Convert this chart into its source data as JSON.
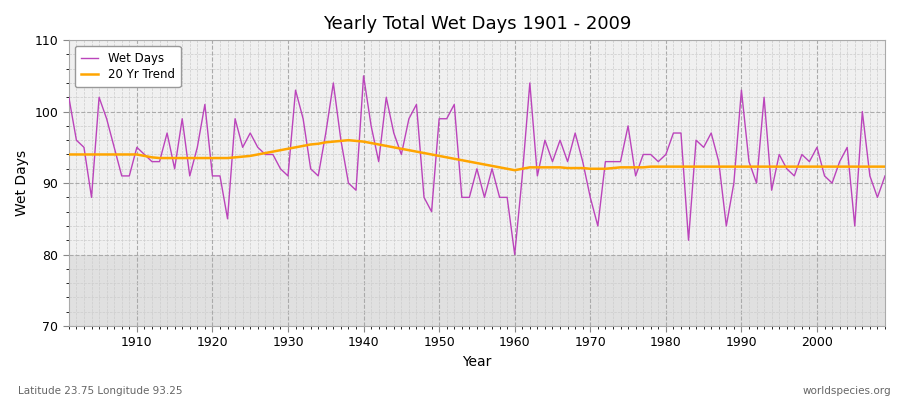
{
  "title": "Yearly Total Wet Days 1901 - 2009",
  "xlabel": "Year",
  "ylabel": "Wet Days",
  "xlim": [
    1901,
    2009
  ],
  "ylim": [
    70,
    110
  ],
  "yticks": [
    70,
    80,
    90,
    100,
    110
  ],
  "xticks": [
    1910,
    1920,
    1930,
    1940,
    1950,
    1960,
    1970,
    1980,
    1990,
    2000
  ],
  "bg_color": "#ffffff",
  "plot_bg_upper": "#f0f0f0",
  "plot_bg_lower": "#e0e0e0",
  "wet_days_color": "#bb44bb",
  "trend_color": "#ffa500",
  "legend_labels": [
    "Wet Days",
    "20 Yr Trend"
  ],
  "footer_left": "Latitude 23.75 Longitude 93.25",
  "footer_right": "worldspecies.org",
  "wet_days": {
    "years": [
      1901,
      1902,
      1903,
      1904,
      1905,
      1906,
      1907,
      1908,
      1909,
      1910,
      1911,
      1912,
      1913,
      1914,
      1915,
      1916,
      1917,
      1918,
      1919,
      1920,
      1921,
      1922,
      1923,
      1924,
      1925,
      1926,
      1927,
      1928,
      1929,
      1930,
      1931,
      1932,
      1933,
      1934,
      1935,
      1936,
      1937,
      1938,
      1939,
      1940,
      1941,
      1942,
      1943,
      1944,
      1945,
      1946,
      1947,
      1948,
      1949,
      1950,
      1951,
      1952,
      1953,
      1954,
      1955,
      1956,
      1957,
      1958,
      1959,
      1960,
      1961,
      1962,
      1963,
      1964,
      1965,
      1966,
      1967,
      1968,
      1969,
      1970,
      1971,
      1972,
      1973,
      1974,
      1975,
      1976,
      1977,
      1978,
      1979,
      1980,
      1981,
      1982,
      1983,
      1984,
      1985,
      1986,
      1987,
      1988,
      1989,
      1990,
      1991,
      1992,
      1993,
      1994,
      1995,
      1996,
      1997,
      1998,
      1999,
      2000,
      2001,
      2002,
      2003,
      2004,
      2005,
      2006,
      2007,
      2008,
      2009
    ],
    "values": [
      102,
      96,
      95,
      88,
      102,
      99,
      95,
      91,
      91,
      95,
      94,
      93,
      93,
      97,
      92,
      99,
      91,
      95,
      101,
      91,
      91,
      85,
      99,
      95,
      97,
      95,
      94,
      94,
      92,
      91,
      103,
      99,
      92,
      91,
      97,
      104,
      96,
      90,
      89,
      105,
      98,
      93,
      102,
      97,
      94,
      99,
      101,
      88,
      86,
      99,
      99,
      101,
      88,
      88,
      92,
      88,
      92,
      88,
      88,
      80,
      91,
      104,
      91,
      96,
      93,
      96,
      93,
      97,
      93,
      88,
      84,
      93,
      93,
      93,
      98,
      91,
      94,
      94,
      93,
      94,
      97,
      97,
      82,
      96,
      95,
      97,
      93,
      84,
      90,
      103,
      93,
      90,
      102,
      89,
      94,
      92,
      91,
      94,
      93,
      95,
      91,
      90,
      93,
      95,
      84,
      100,
      91,
      88,
      91
    ]
  },
  "trend": {
    "years": [
      1901,
      1902,
      1903,
      1904,
      1905,
      1906,
      1907,
      1908,
      1909,
      1910,
      1911,
      1912,
      1913,
      1914,
      1915,
      1916,
      1917,
      1918,
      1919,
      1920,
      1921,
      1922,
      1923,
      1924,
      1925,
      1926,
      1927,
      1928,
      1929,
      1930,
      1931,
      1932,
      1933,
      1934,
      1935,
      1936,
      1937,
      1938,
      1939,
      1940,
      1941,
      1942,
      1943,
      1944,
      1945,
      1946,
      1947,
      1948,
      1949,
      1950,
      1951,
      1952,
      1953,
      1954,
      1955,
      1956,
      1957,
      1958,
      1959,
      1960,
      1961,
      1962,
      1963,
      1964,
      1965,
      1966,
      1967,
      1968,
      1969,
      1970,
      1971,
      1972,
      1973,
      1974,
      1975,
      1976,
      1977,
      1978,
      1979,
      1980,
      1981,
      1982,
      1983,
      1984,
      1985,
      1986,
      1987,
      1988,
      1989,
      1990,
      1991,
      1992,
      1993,
      1994,
      1995,
      1996,
      1997,
      1998,
      1999,
      2000,
      2001,
      2002,
      2003,
      2004,
      2005,
      2006,
      2007,
      2008,
      2009
    ],
    "values": [
      94.0,
      94.0,
      94.0,
      94.0,
      94.0,
      94.0,
      94.0,
      94.0,
      94.0,
      94.0,
      93.8,
      93.6,
      93.5,
      93.5,
      93.5,
      93.5,
      93.5,
      93.5,
      93.5,
      93.5,
      93.5,
      93.5,
      93.6,
      93.7,
      93.8,
      94.0,
      94.2,
      94.4,
      94.6,
      94.8,
      95.0,
      95.2,
      95.4,
      95.5,
      95.7,
      95.8,
      95.9,
      96.0,
      95.9,
      95.8,
      95.6,
      95.4,
      95.2,
      95.0,
      94.8,
      94.6,
      94.4,
      94.2,
      94.0,
      93.8,
      93.6,
      93.4,
      93.2,
      93.0,
      92.8,
      92.6,
      92.4,
      92.2,
      92.0,
      91.8,
      92.0,
      92.2,
      92.2,
      92.2,
      92.2,
      92.2,
      92.1,
      92.1,
      92.1,
      92.0,
      92.0,
      92.0,
      92.1,
      92.2,
      92.2,
      92.2,
      92.2,
      92.3,
      92.3,
      92.3,
      92.3,
      92.3,
      92.3,
      92.3,
      92.3,
      92.3,
      92.3,
      92.3,
      92.3,
      92.3,
      92.3,
      92.3,
      92.3,
      92.3,
      92.3,
      92.3,
      92.3,
      92.3,
      92.3,
      92.3,
      92.3,
      92.3,
      92.3,
      92.3,
      92.3,
      92.3,
      92.3,
      92.3,
      92.3
    ]
  }
}
